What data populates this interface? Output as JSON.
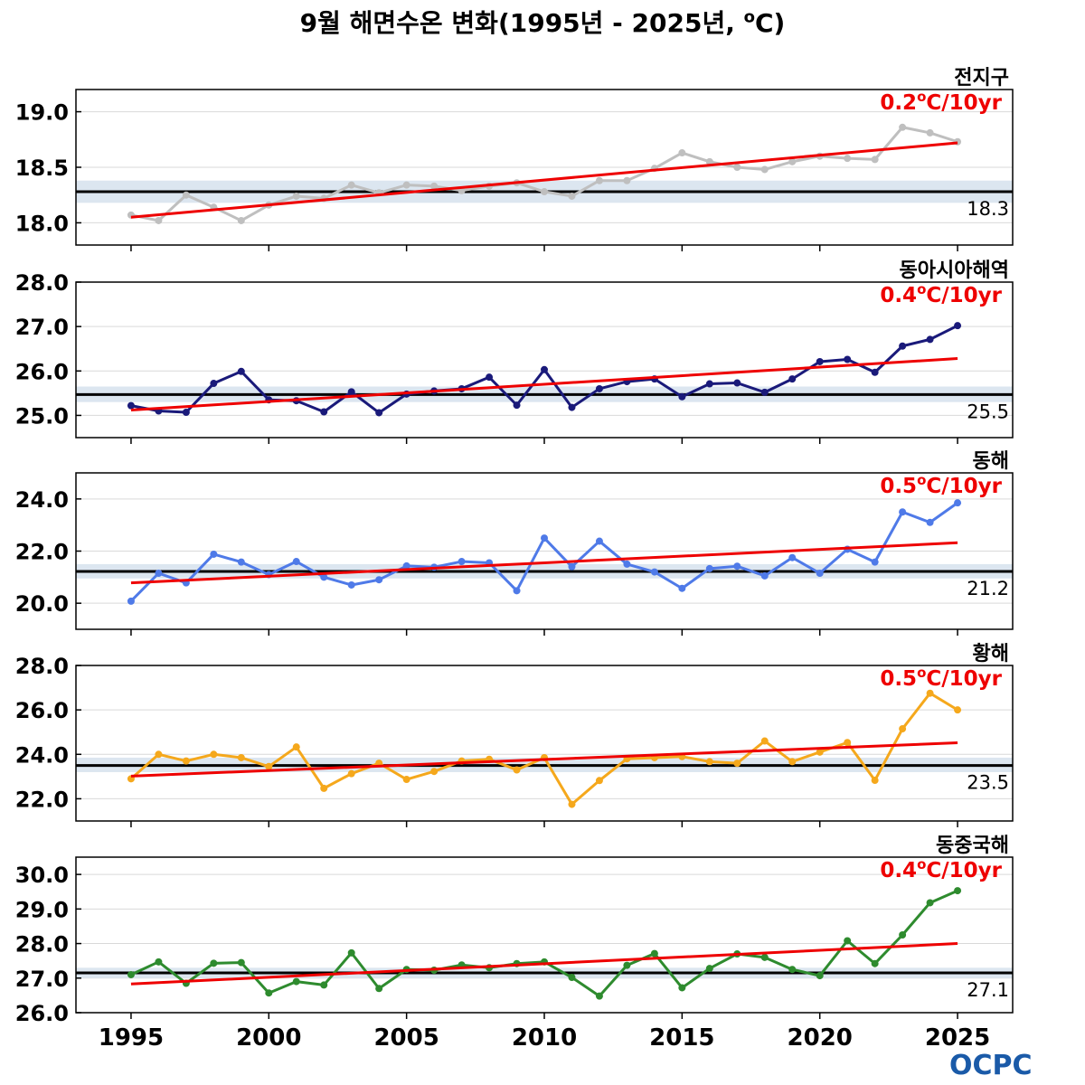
{
  "title": {
    "main": "9월 해면수온 변화(1995년 - 2025년, ",
    "deg": "o",
    "unit": "C)"
  },
  "logo": "OCPC",
  "colors": {
    "trend": "#ee0000",
    "climatology": "#000000",
    "band": "#dce6f0",
    "grid": "#d9d9d9"
  },
  "chart_data": {
    "type": "line",
    "x_ticks": [
      "1995",
      "2000",
      "2005",
      "2010",
      "2015",
      "2020",
      "2025"
    ],
    "years": [
      1995,
      1996,
      1997,
      1998,
      1999,
      2000,
      2001,
      2002,
      2003,
      2004,
      2005,
      2006,
      2007,
      2008,
      2009,
      2010,
      2011,
      2012,
      2013,
      2014,
      2015,
      2016,
      2017,
      2018,
      2019,
      2020,
      2021,
      2022,
      2023,
      2024,
      2025
    ],
    "xlim": [
      1993,
      2027
    ],
    "panels": [
      {
        "name": "전지구",
        "trend_value": "0.2",
        "trend_deg": "o",
        "trend_unit": "C/10yr",
        "color": "#bfbfbf",
        "ylim": [
          17.8,
          19.2
        ],
        "yticks": [
          "18.0",
          "18.5",
          "19.0"
        ],
        "climatology": 18.28,
        "climatology_label": "18.3",
        "band": [
          18.18,
          18.38
        ],
        "trend_line": [
          18.05,
          18.72
        ],
        "values": [
          18.07,
          18.02,
          18.25,
          18.14,
          18.02,
          18.16,
          18.24,
          18.22,
          18.34,
          18.27,
          18.34,
          18.33,
          18.29,
          18.33,
          18.36,
          18.28,
          18.24,
          18.38,
          18.38,
          18.49,
          18.63,
          18.55,
          18.5,
          18.48,
          18.55,
          18.6,
          18.58,
          18.57,
          18.86,
          18.81,
          18.73
        ]
      },
      {
        "name": "동아시아해역",
        "trend_value": "0.4",
        "trend_deg": "o",
        "trend_unit": "C/10yr",
        "color": "#1a1a7a",
        "ylim": [
          24.5,
          28.0
        ],
        "yticks": [
          "25.0",
          "26.0",
          "27.0",
          "28.0"
        ],
        "climatology": 25.47,
        "climatology_label": "25.5",
        "band": [
          25.3,
          25.65
        ],
        "trend_line": [
          25.12,
          26.28
        ],
        "values": [
          25.22,
          25.1,
          25.07,
          25.72,
          25.99,
          25.35,
          25.33,
          25.08,
          25.53,
          25.06,
          25.48,
          25.55,
          25.6,
          25.86,
          25.23,
          26.03,
          25.18,
          25.6,
          25.76,
          25.82,
          25.42,
          25.71,
          25.73,
          25.52,
          25.82,
          26.21,
          26.26,
          25.97,
          26.56,
          26.71,
          27.02
        ]
      },
      {
        "name": "동해",
        "trend_value": "0.5",
        "trend_deg": "o",
        "trend_unit": "C/10yr",
        "color": "#4f7ae8",
        "ylim": [
          19.0,
          25.0
        ],
        "yticks": [
          "20.0",
          "22.0",
          "24.0"
        ],
        "climatology": 21.22,
        "climatology_label": "21.2",
        "band": [
          20.95,
          21.5
        ],
        "trend_line": [
          20.78,
          22.32
        ],
        "values": [
          20.08,
          21.15,
          20.78,
          21.88,
          21.58,
          21.1,
          21.6,
          21.0,
          20.7,
          20.9,
          21.43,
          21.38,
          21.6,
          21.55,
          20.48,
          22.5,
          21.4,
          22.38,
          21.5,
          21.2,
          20.57,
          21.33,
          21.42,
          21.05,
          21.75,
          21.15,
          22.07,
          21.58,
          23.5,
          23.1,
          23.85
        ]
      },
      {
        "name": "황해",
        "trend_value": "0.5",
        "trend_deg": "o",
        "trend_unit": "C/10yr",
        "color": "#f5a81c",
        "ylim": [
          21.0,
          28.0
        ],
        "yticks": [
          "22.0",
          "24.0",
          "26.0",
          "28.0"
        ],
        "climatology": 23.5,
        "climatology_label": "23.5",
        "band": [
          23.2,
          23.85
        ],
        "trend_line": [
          23.02,
          24.52
        ],
        "values": [
          22.9,
          24.0,
          23.7,
          24.0,
          23.85,
          23.45,
          24.33,
          22.47,
          23.13,
          23.6,
          22.87,
          23.23,
          23.7,
          23.78,
          23.3,
          23.85,
          21.75,
          22.82,
          23.8,
          23.85,
          23.9,
          23.67,
          23.6,
          24.6,
          23.67,
          24.1,
          24.53,
          22.83,
          25.15,
          26.75,
          26.0
        ]
      },
      {
        "name": "동중국해",
        "trend_value": "0.4",
        "trend_deg": "o",
        "trend_unit": "C/10yr",
        "color": "#2e8b2e",
        "ylim": [
          26.0,
          30.5
        ],
        "yticks": [
          "26.0",
          "27.0",
          "28.0",
          "29.0",
          "30.0"
        ],
        "climatology": 27.15,
        "climatology_label": "27.1",
        "band": [
          27.0,
          27.3
        ],
        "trend_line": [
          26.83,
          28.0
        ],
        "values": [
          27.1,
          27.47,
          26.85,
          27.43,
          27.45,
          26.57,
          26.9,
          26.8,
          27.73,
          26.7,
          27.25,
          27.23,
          27.38,
          27.3,
          27.42,
          27.47,
          27.02,
          26.48,
          27.37,
          27.71,
          26.72,
          27.28,
          27.7,
          27.6,
          27.25,
          27.07,
          28.08,
          27.42,
          28.25,
          29.18,
          29.53
        ]
      }
    ]
  }
}
